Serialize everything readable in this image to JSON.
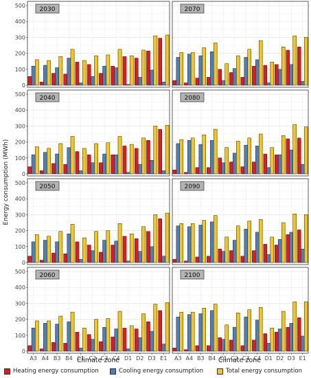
{
  "chart_data": {
    "type": "bar",
    "ylabel": "Energy consumption (MWh)",
    "xlabel": "Climate zone",
    "categories": [
      "A3",
      "A4",
      "B3",
      "B4",
      "C1",
      "C2",
      "C3",
      "C4",
      "D1",
      "D2",
      "D3",
      "E1"
    ],
    "ylim": [
      0,
      500
    ],
    "yticks": [
      0,
      100,
      200,
      300,
      400,
      500
    ],
    "series_names": [
      "Heating energy consumption",
      "Cooling energy consumption",
      "Total energy consumption"
    ],
    "colors": [
      "#e31a1c",
      "#4a7fc0",
      "#f5c518"
    ],
    "legend_position": "bottom",
    "panels": [
      {
        "title": "2030",
        "heating": [
          55,
          20,
          75,
          70,
          145,
          130,
          75,
          120,
          180,
          170,
          215,
          295
        ],
        "cooling": [
          120,
          125,
          110,
          170,
          15,
          55,
          120,
          110,
          5,
          50,
          95,
          20
        ],
        "total": [
          160,
          155,
          180,
          225,
          155,
          185,
          190,
          225,
          185,
          220,
          310,
          315
        ]
      },
      {
        "title": "2070",
        "heating": [
          30,
          15,
          45,
          50,
          100,
          80,
          50,
          120,
          125,
          130,
          220,
          240
        ],
        "cooling": [
          175,
          195,
          185,
          210,
          30,
          105,
          175,
          160,
          15,
          100,
          130,
          25
        ],
        "total": [
          205,
          205,
          235,
          265,
          135,
          185,
          225,
          280,
          145,
          240,
          310,
          300
        ]
      },
      {
        "title": "2040",
        "heating": [
          45,
          20,
          65,
          60,
          140,
          120,
          70,
          120,
          175,
          160,
          210,
          280
        ],
        "cooling": [
          120,
          135,
          125,
          165,
          20,
          70,
          125,
          120,
          10,
          60,
          85,
          20
        ],
        "total": [
          170,
          160,
          190,
          235,
          160,
          190,
          195,
          235,
          185,
          225,
          300,
          305
        ]
      },
      {
        "title": "2080",
        "heating": [
          25,
          10,
          40,
          40,
          100,
          75,
          45,
          75,
          125,
          120,
          220,
          225
        ],
        "cooling": [
          190,
          210,
          185,
          210,
          70,
          130,
          180,
          175,
          40,
          120,
          150,
          60
        ],
        "total": [
          215,
          225,
          245,
          280,
          165,
          205,
          225,
          250,
          165,
          240,
          310,
          295
        ]
      },
      {
        "title": "2050",
        "heating": [
          40,
          15,
          60,
          55,
          130,
          110,
          65,
          110,
          165,
          150,
          195,
          275
        ],
        "cooling": [
          130,
          140,
          130,
          180,
          20,
          75,
          140,
          135,
          10,
          70,
          100,
          40
        ],
        "total": [
          175,
          165,
          195,
          240,
          155,
          195,
          200,
          245,
          180,
          225,
          300,
          310
        ]
      },
      {
        "title": "2090",
        "heating": [
          20,
          10,
          35,
          40,
          85,
          75,
          40,
          75,
          115,
          110,
          175,
          205
        ],
        "cooling": [
          230,
          225,
          235,
          255,
          70,
          140,
          210,
          190,
          50,
          145,
          190,
          85
        ],
        "total": [
          245,
          245,
          265,
          295,
          160,
          230,
          260,
          270,
          160,
          250,
          305,
          300
        ]
      },
      {
        "title": "2060",
        "heating": [
          35,
          15,
          55,
          50,
          120,
          105,
          60,
          90,
          145,
          140,
          185,
          255
        ],
        "cooling": [
          145,
          175,
          170,
          185,
          20,
          75,
          150,
          140,
          15,
          85,
          125,
          45
        ],
        "total": [
          190,
          190,
          220,
          245,
          145,
          200,
          205,
          250,
          160,
          235,
          295,
          305
        ]
      },
      {
        "title": "2100",
        "heating": [
          20,
          10,
          35,
          35,
          85,
          70,
          35,
          70,
          110,
          120,
          150,
          210
        ],
        "cooling": [
          215,
          230,
          235,
          255,
          75,
          150,
          215,
          195,
          50,
          140,
          175,
          95
        ],
        "total": [
          245,
          245,
          270,
          295,
          165,
          240,
          260,
          275,
          145,
          250,
          310,
          310
        ]
      }
    ]
  }
}
